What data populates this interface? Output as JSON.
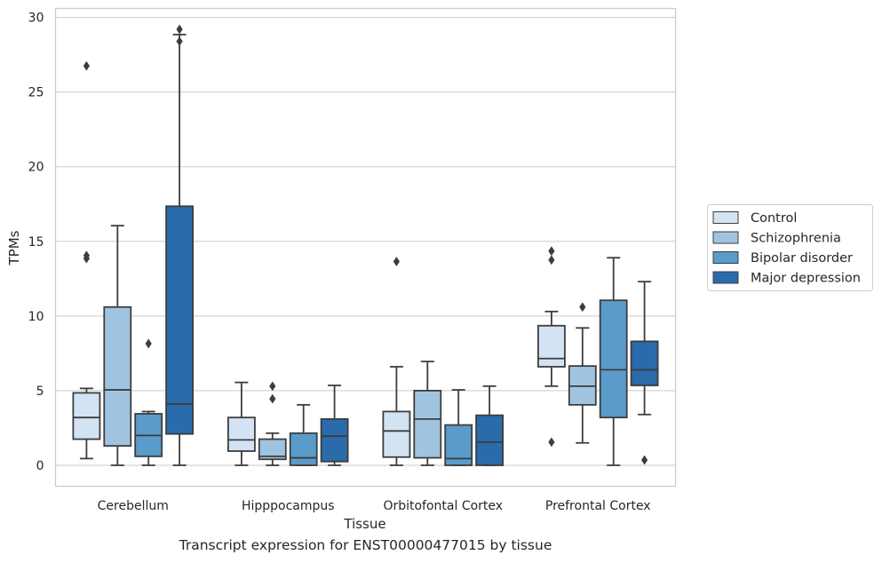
{
  "caption": "Transcript expression for ENST00000477015 by tissue",
  "chart_data": {
    "type": "boxplot",
    "title": "",
    "xlabel": "Tissue",
    "ylabel": "TPMs",
    "ylim": [
      -1.4,
      30.6
    ],
    "yticks": [
      0,
      5,
      10,
      15,
      20,
      25,
      30
    ],
    "grid": "horizontal",
    "legend_position": "right",
    "categories": [
      "Cerebellum",
      "Hipppocampus",
      "Orbitofontal Cortex",
      "Prefrontal Cortex"
    ],
    "series": [
      {
        "name": "Control",
        "color": "#d4e3f3",
        "boxes": [
          {
            "whislo": 0.45,
            "q1": 1.75,
            "med": 3.2,
            "q3": 4.85,
            "whishi": 5.15,
            "fliers": [
              13.85,
              14.05,
              26.75
            ]
          },
          {
            "whislo": 0.0,
            "q1": 0.95,
            "med": 1.7,
            "q3": 3.2,
            "whishi": 5.55,
            "fliers": []
          },
          {
            "whislo": 0.0,
            "q1": 0.55,
            "med": 2.3,
            "q3": 3.6,
            "whishi": 6.6,
            "fliers": [
              13.65
            ]
          },
          {
            "whislo": 5.3,
            "q1": 6.6,
            "med": 7.15,
            "q3": 9.35,
            "whishi": 10.3,
            "fliers": [
              1.55,
              13.75,
              14.35
            ]
          }
        ]
      },
      {
        "name": "Schizophrenia",
        "color": "#a0c4df",
        "boxes": [
          {
            "whislo": 0.0,
            "q1": 1.3,
            "med": 5.05,
            "q3": 10.6,
            "whishi": 16.05,
            "fliers": []
          },
          {
            "whislo": 0.0,
            "q1": 0.4,
            "med": 0.6,
            "q3": 1.75,
            "whishi": 2.15,
            "fliers": [
              4.45,
              5.3
            ]
          },
          {
            "whislo": 0.0,
            "q1": 0.5,
            "med": 3.1,
            "q3": 5.0,
            "whishi": 6.95,
            "fliers": []
          },
          {
            "whislo": 1.5,
            "q1": 4.05,
            "med": 5.3,
            "q3": 6.65,
            "whishi": 9.2,
            "fliers": [
              10.6
            ]
          }
        ]
      },
      {
        "name": "Bipolar disorder",
        "color": "#5a9bc9",
        "boxes": [
          {
            "whislo": 0.0,
            "q1": 0.6,
            "med": 2.0,
            "q3": 3.45,
            "whishi": 3.6,
            "fliers": [
              8.15
            ]
          },
          {
            "whislo": 0.0,
            "q1": 0.0,
            "med": 0.5,
            "q3": 2.15,
            "whishi": 4.05,
            "fliers": []
          },
          {
            "whislo": 0.0,
            "q1": 0.0,
            "med": 0.45,
            "q3": 2.7,
            "whishi": 5.05,
            "fliers": []
          },
          {
            "whislo": 0.0,
            "q1": 3.2,
            "med": 6.4,
            "q3": 11.05,
            "whishi": 13.9,
            "fliers": []
          }
        ]
      },
      {
        "name": "Major depression",
        "color": "#2a6bab",
        "boxes": [
          {
            "whislo": 0.0,
            "q1": 2.1,
            "med": 4.1,
            "q3": 17.35,
            "whishi": 28.85,
            "fliers": [
              28.4,
              29.2
            ]
          },
          {
            "whislo": 0.0,
            "q1": 0.25,
            "med": 1.95,
            "q3": 3.1,
            "whishi": 5.35,
            "fliers": []
          },
          {
            "whislo": 0.0,
            "q1": 0.0,
            "med": 1.55,
            "q3": 3.35,
            "whishi": 5.3,
            "fliers": []
          },
          {
            "whislo": 3.4,
            "q1": 5.35,
            "med": 6.4,
            "q3": 8.3,
            "whishi": 12.3,
            "fliers": [
              0.35
            ]
          }
        ]
      }
    ]
  }
}
